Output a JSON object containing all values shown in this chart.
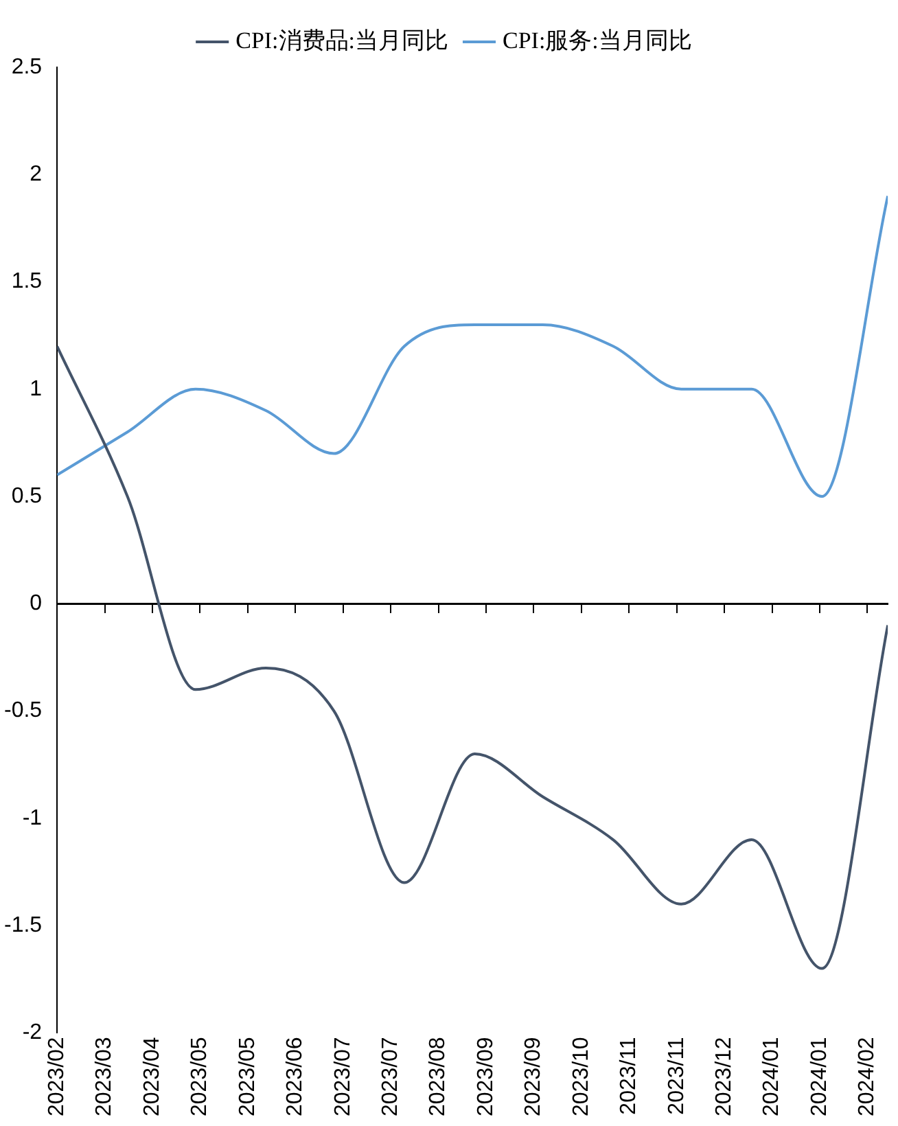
{
  "chart_data": {
    "type": "line",
    "x": [
      "2023-02-28",
      "2023-03-31",
      "2023-04-30",
      "2023-05-31",
      "2023-06-30",
      "2023-07-31",
      "2023-08-31",
      "2023-09-30",
      "2023-10-31",
      "2023-11-30",
      "2023-12-31",
      "2024-01-31",
      "2024-02-29"
    ],
    "series": [
      {
        "name": "CPI:消费品:当月同比",
        "color": "#44546a",
        "values": [
          1.2,
          0.5,
          -0.4,
          -0.3,
          -0.5,
          -1.3,
          -0.7,
          -0.9,
          -1.1,
          -1.4,
          -1.1,
          -1.7,
          -0.1
        ]
      },
      {
        "name": "CPI:服务:当月同比",
        "color": "#5b9bd5",
        "values": [
          0.6,
          0.8,
          1.0,
          0.9,
          0.7,
          1.2,
          1.3,
          1.3,
          1.2,
          1.0,
          1.0,
          0.5,
          1.9
        ]
      }
    ],
    "xlim": [
      "2023-02-28",
      "2024-02-29"
    ],
    "xticks": [
      {
        "value": "2023-02-28",
        "label": "2023/02"
      },
      {
        "value": "2023-03-21",
        "label": "2023/03"
      },
      {
        "value": "2023-04-11",
        "label": "2023/04"
      },
      {
        "value": "2023-05-02",
        "label": "2023/05"
      },
      {
        "value": "2023-05-23",
        "label": "2023/05"
      },
      {
        "value": "2023-06-13",
        "label": "2023/06"
      },
      {
        "value": "2023-07-04",
        "label": "2023/07"
      },
      {
        "value": "2023-07-25",
        "label": "2023/07"
      },
      {
        "value": "2023-08-15",
        "label": "2023/08"
      },
      {
        "value": "2023-09-05",
        "label": "2023/09"
      },
      {
        "value": "2023-09-26",
        "label": "2023/09"
      },
      {
        "value": "2023-10-17",
        "label": "2023/10"
      },
      {
        "value": "2023-11-07",
        "label": "2023/11"
      },
      {
        "value": "2023-11-28",
        "label": "2023/11"
      },
      {
        "value": "2023-12-19",
        "label": "2023/12"
      },
      {
        "value": "2024-01-09",
        "label": "2024/01"
      },
      {
        "value": "2024-01-30",
        "label": "2024/01"
      },
      {
        "value": "2024-02-20",
        "label": "2024/02"
      }
    ],
    "ylim": [
      -2,
      2.5
    ],
    "yticks": [
      -2,
      -1.5,
      -1,
      -0.5,
      0,
      0.5,
      1,
      1.5,
      2,
      2.5
    ],
    "ref_lines": [
      {
        "axis": "y",
        "value": 0,
        "color": "#000000"
      }
    ],
    "grid": false,
    "legend": "top",
    "marker": "none",
    "line_style": "solid"
  }
}
